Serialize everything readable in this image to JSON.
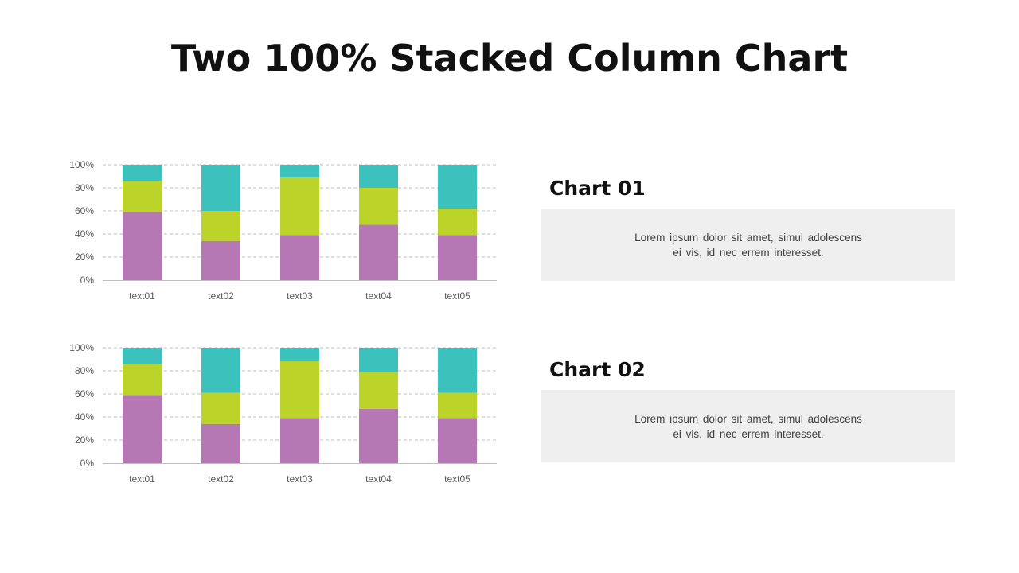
{
  "title": "Two 100% Stacked Column Chart",
  "colors": {
    "bottom": "#b678b4",
    "middle": "#bcd42a",
    "top": "#3dc1bd"
  },
  "panels": [
    {
      "heading": "Chart 01",
      "text": "Lorem ipsum dolor sit amet, simul adolescens ei vis, id nec errem interesset."
    },
    {
      "heading": "Chart 02",
      "text": "Lorem ipsum dolor sit amet, simul adolescens ei vis, id nec errem interesset."
    }
  ],
  "chart_data": [
    {
      "type": "bar",
      "stacked": "100%",
      "categories": [
        "text01",
        "text02",
        "text03",
        "text04",
        "text05"
      ],
      "y_ticks": [
        "0%",
        "20%",
        "40%",
        "60%",
        "80%",
        "100%"
      ],
      "ylim": [
        0,
        100
      ],
      "grid": true,
      "series": [
        {
          "values": [
            59,
            34,
            39,
            48,
            39
          ]
        },
        {
          "values": [
            27,
            26,
            50,
            32,
            23
          ]
        },
        {
          "values": [
            14,
            40,
            11,
            20,
            38
          ]
        }
      ]
    },
    {
      "type": "bar",
      "stacked": "100%",
      "categories": [
        "text01",
        "text02",
        "text03",
        "text04",
        "text05"
      ],
      "y_ticks": [
        "0%",
        "20%",
        "40%",
        "60%",
        "80%",
        "100%"
      ],
      "ylim": [
        0,
        100
      ],
      "grid": true,
      "series": [
        {
          "values": [
            59,
            34,
            39,
            47,
            39
          ]
        },
        {
          "values": [
            27,
            27,
            50,
            32,
            22
          ]
        },
        {
          "values": [
            14,
            39,
            11,
            21,
            39
          ]
        }
      ]
    }
  ]
}
